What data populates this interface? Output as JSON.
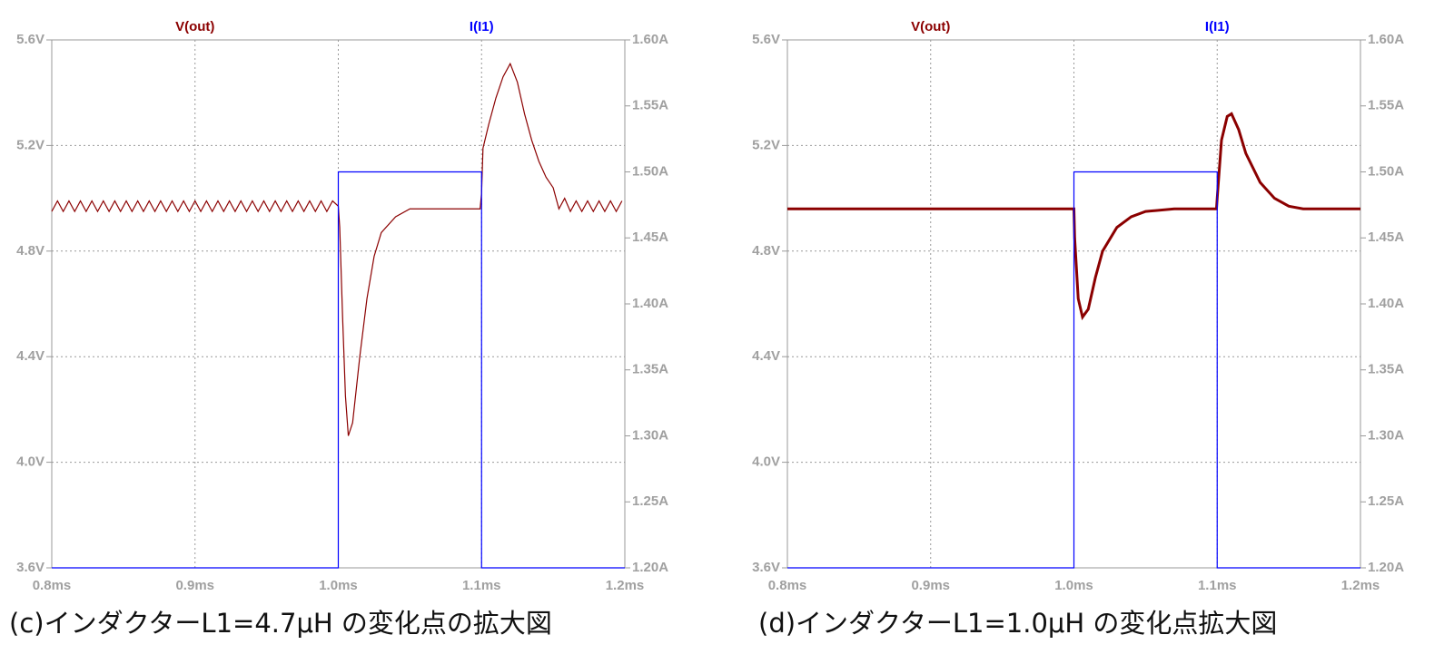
{
  "chart_data": [
    {
      "type": "line",
      "caption": "(c)インダクターL1=4.7μH の変化点の拡大図",
      "grid": true,
      "xlim": [
        0.8,
        1.2
      ],
      "xticks": [
        {
          "value": 0.8,
          "label": "0.8ms"
        },
        {
          "value": 0.9,
          "label": "0.9ms"
        },
        {
          "value": 1.0,
          "label": "1.0ms"
        },
        {
          "value": 1.1,
          "label": "1.1ms"
        },
        {
          "value": 1.2,
          "label": "1.2ms"
        }
      ],
      "ylim": [
        3.6,
        5.6
      ],
      "yticks": [
        {
          "value": 3.6,
          "label": "3.6V"
        },
        {
          "value": 4.0,
          "label": "4.0V"
        },
        {
          "value": 4.4,
          "label": "4.4V"
        },
        {
          "value": 4.8,
          "label": "4.8V"
        },
        {
          "value": 5.2,
          "label": "5.2V"
        },
        {
          "value": 5.6,
          "label": "5.6V"
        }
      ],
      "y2lim": [
        1.2,
        1.6
      ],
      "y2ticks": [
        {
          "value": 1.2,
          "label": "1.20A"
        },
        {
          "value": 1.25,
          "label": "1.25A"
        },
        {
          "value": 1.3,
          "label": "1.30A"
        },
        {
          "value": 1.35,
          "label": "1.35A"
        },
        {
          "value": 1.4,
          "label": "1.40A"
        },
        {
          "value": 1.45,
          "label": "1.45A"
        },
        {
          "value": 1.5,
          "label": "1.50A"
        },
        {
          "value": 1.55,
          "label": "1.55A"
        },
        {
          "value": 1.6,
          "label": "1.60A"
        }
      ],
      "series": [
        {
          "name": "V(out)",
          "color": "#8b0000",
          "x": [
            0.8,
            0.804,
            0.808,
            0.812,
            0.816,
            0.82,
            0.824,
            0.828,
            0.832,
            0.836,
            0.84,
            0.844,
            0.848,
            0.852,
            0.856,
            0.86,
            0.864,
            0.868,
            0.872,
            0.876,
            0.88,
            0.884,
            0.888,
            0.892,
            0.896,
            0.9,
            0.904,
            0.908,
            0.912,
            0.916,
            0.92,
            0.924,
            0.928,
            0.932,
            0.936,
            0.94,
            0.944,
            0.948,
            0.952,
            0.956,
            0.96,
            0.964,
            0.968,
            0.972,
            0.976,
            0.98,
            0.984,
            0.988,
            0.992,
            0.996,
            1.0,
            1.001,
            1.003,
            1.005,
            1.007,
            1.01,
            1.015,
            1.02,
            1.025,
            1.03,
            1.04,
            1.05,
            1.06,
            1.07,
            1.08,
            1.099,
            1.1,
            1.101,
            1.105,
            1.11,
            1.115,
            1.12,
            1.125,
            1.13,
            1.135,
            1.14,
            1.145,
            1.15,
            1.154,
            1.158,
            1.162,
            1.166,
            1.17,
            1.174,
            1.178,
            1.182,
            1.186,
            1.19,
            1.194,
            1.198
          ],
          "values": [
            4.95,
            4.99,
            4.95,
            4.99,
            4.95,
            4.99,
            4.95,
            4.99,
            4.95,
            4.99,
            4.95,
            4.99,
            4.95,
            4.99,
            4.95,
            4.99,
            4.95,
            4.99,
            4.95,
            4.99,
            4.95,
            4.99,
            4.95,
            4.99,
            4.95,
            4.99,
            4.95,
            4.99,
            4.95,
            4.99,
            4.95,
            4.99,
            4.95,
            4.99,
            4.95,
            4.99,
            4.95,
            4.99,
            4.95,
            4.99,
            4.95,
            4.99,
            4.95,
            4.99,
            4.95,
            4.99,
            4.95,
            4.99,
            4.95,
            4.99,
            4.97,
            4.89,
            4.55,
            4.25,
            4.1,
            4.15,
            4.4,
            4.62,
            4.78,
            4.87,
            4.93,
            4.96,
            4.96,
            4.96,
            4.96,
            4.96,
            5.02,
            5.19,
            5.28,
            5.38,
            5.46,
            5.51,
            5.44,
            5.32,
            5.22,
            5.14,
            5.08,
            5.04,
            4.96,
            5.0,
            4.95,
            4.99,
            4.95,
            4.99,
            4.95,
            4.99,
            4.95,
            4.99,
            4.95,
            4.99
          ]
        },
        {
          "name": "I(I1)",
          "color": "#0000ff",
          "axis": "y2",
          "x": [
            0.8,
            1.0,
            1.0,
            1.1,
            1.1,
            1.2
          ],
          "values": [
            1.2,
            1.2,
            1.5,
            1.5,
            1.2,
            1.2
          ]
        }
      ]
    },
    {
      "type": "line",
      "caption": "(d)インダクターL1=1.0μH の変化点拡大図",
      "grid": true,
      "xlim": [
        0.8,
        1.2
      ],
      "xticks": [
        {
          "value": 0.8,
          "label": "0.8ms"
        },
        {
          "value": 0.9,
          "label": "0.9ms"
        },
        {
          "value": 1.0,
          "label": "1.0ms"
        },
        {
          "value": 1.1,
          "label": "1.1ms"
        },
        {
          "value": 1.2,
          "label": "1.2ms"
        }
      ],
      "ylim": [
        3.6,
        5.6
      ],
      "yticks": [
        {
          "value": 3.6,
          "label": "3.6V"
        },
        {
          "value": 4.0,
          "label": "4.0V"
        },
        {
          "value": 4.4,
          "label": "4.4V"
        },
        {
          "value": 4.8,
          "label": "4.8V"
        },
        {
          "value": 5.2,
          "label": "5.2V"
        },
        {
          "value": 5.6,
          "label": "5.6V"
        }
      ],
      "y2lim": [
        1.2,
        1.6
      ],
      "y2ticks": [
        {
          "value": 1.2,
          "label": "1.20A"
        },
        {
          "value": 1.25,
          "label": "1.25A"
        },
        {
          "value": 1.3,
          "label": "1.30A"
        },
        {
          "value": 1.35,
          "label": "1.35A"
        },
        {
          "value": 1.4,
          "label": "1.40A"
        },
        {
          "value": 1.45,
          "label": "1.45A"
        },
        {
          "value": 1.5,
          "label": "1.50A"
        },
        {
          "value": 1.55,
          "label": "1.55A"
        },
        {
          "value": 1.6,
          "label": "1.60A"
        }
      ],
      "series": [
        {
          "name": "V(out)",
          "color": "#8b0000",
          "x": [
            0.8,
            1.0,
            1.0005,
            1.003,
            1.006,
            1.01,
            1.015,
            1.02,
            1.03,
            1.04,
            1.05,
            1.07,
            1.0995,
            1.1,
            1.103,
            1.107,
            1.11,
            1.115,
            1.12,
            1.13,
            1.14,
            1.15,
            1.16,
            1.2
          ],
          "values": [
            4.96,
            4.96,
            4.85,
            4.62,
            4.55,
            4.58,
            4.7,
            4.8,
            4.89,
            4.93,
            4.95,
            4.96,
            4.96,
            5.0,
            5.22,
            5.31,
            5.32,
            5.26,
            5.17,
            5.06,
            5.0,
            4.97,
            4.96,
            4.96
          ]
        },
        {
          "name": "I(I1)",
          "color": "#0000ff",
          "axis": "y2",
          "x": [
            0.8,
            1.0,
            1.0,
            1.1,
            1.1,
            1.2
          ],
          "values": [
            1.2,
            1.2,
            1.5,
            1.5,
            1.2,
            1.2
          ]
        }
      ]
    }
  ]
}
